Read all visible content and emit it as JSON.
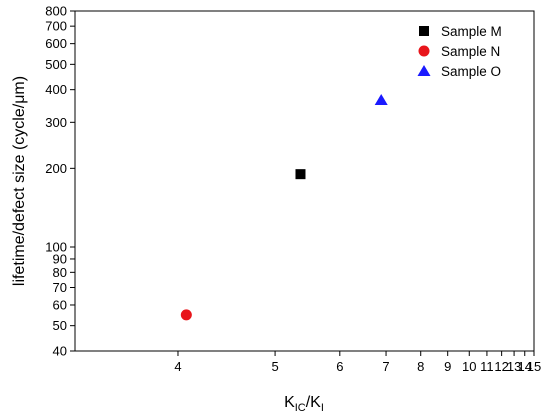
{
  "chart_data": {
    "type": "scatter",
    "xlabel": {
      "main": "K",
      "sub1": "IC",
      "mid": "/K",
      "sub2": "I"
    },
    "ylabel": "lifetime/defect size (cycle/μm)",
    "xscale": "reciprocal",
    "yscale": "log",
    "xlim": [
      3.3,
      15
    ],
    "ylim": [
      40,
      800
    ],
    "xticks_major": [
      4,
      5,
      6,
      7,
      8,
      9,
      10,
      11,
      12,
      13,
      14,
      15
    ],
    "yticks_major": [
      40,
      50,
      60,
      70,
      80,
      90,
      100,
      200,
      300,
      400,
      500,
      600,
      700,
      800
    ],
    "grid": false,
    "legend_position": "top-right",
    "series": [
      {
        "name": "Sample M",
        "marker": "square",
        "color": "#000000",
        "points": [
          {
            "x": 5.35,
            "y": 190
          }
        ]
      },
      {
        "name": "Sample N",
        "marker": "circle",
        "color": "#e8151b",
        "points": [
          {
            "x": 4.07,
            "y": 55
          }
        ]
      },
      {
        "name": "Sample O",
        "marker": "triangle",
        "color": "#1a1aff",
        "points": [
          {
            "x": 6.88,
            "y": 365
          }
        ]
      }
    ]
  }
}
